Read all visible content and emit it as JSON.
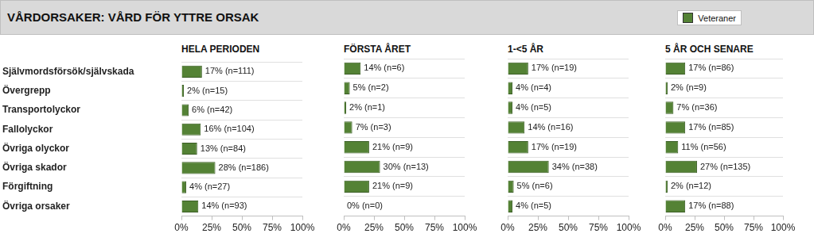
{
  "title": "VÅRDORSAKER: VÅRD FÖR YTTRE ORSAK",
  "chart_data": [
    {
      "type": "bar",
      "orientation": "horizontal",
      "title": "HELA PERIODEN",
      "legend": "top right",
      "categories": [
        "Självmordsförsök/självskada",
        "Övergrepp",
        "Transportolyckor",
        "Fallolyckor",
        "Övriga olyckor",
        "Övriga skador",
        "Förgiftning",
        "Övriga orsaker"
      ],
      "series": [
        {
          "name": "Veteraner",
          "color": "#548235",
          "values": [
            17,
            2,
            6,
            16,
            13,
            28,
            4,
            14
          ],
          "value_labels": [
            "17% (n=111)",
            "2% (n=15)",
            "6% (n=42)",
            "16% (n=104)",
            "13% (n=84)",
            "28% (n=186)",
            "4% (n=27)",
            "14% (n=93)"
          ]
        }
      ],
      "xlim": [
        0,
        100
      ],
      "xticks": [
        {
          "value": 0,
          "label": "0%"
        },
        {
          "value": 25,
          "label": "25%"
        },
        {
          "value": 50,
          "label": "50%"
        },
        {
          "value": 75,
          "label": "75%"
        },
        {
          "value": 100,
          "label": "100%"
        }
      ],
      "data_labels": true,
      "grid": true
    },
    {
      "type": "bar",
      "orientation": "horizontal",
      "title": "FÖRSTA ÅRET",
      "tick_labels": "x",
      "categories": [
        "Självmordsförsök/självskada",
        "Övergrepp",
        "Transportolyckor",
        "Fallolyckor",
        "Övriga olyckor",
        "Övriga skador",
        "Förgiftning",
        "Övriga orsaker"
      ],
      "series": [
        {
          "name": "Veteraner",
          "color": "#548235",
          "values": [
            14,
            5,
            2,
            7,
            21,
            30,
            21,
            0
          ],
          "value_labels": [
            "14% (n=6)",
            "5% (n=2)",
            "2% (n=1)",
            "7% (n=3)",
            "21% (n=9)",
            "30% (n=13)",
            "21% (n=9)",
            "0% (n=0)"
          ]
        }
      ],
      "xlim": [
        0,
        100
      ],
      "xticks": [
        {
          "value": 0,
          "label": "0%"
        },
        {
          "value": 25,
          "label": "25%"
        },
        {
          "value": 50,
          "label": "50%"
        },
        {
          "value": 75,
          "label": "75%"
        },
        {
          "value": 100,
          "label": "100%"
        }
      ],
      "data_labels": true,
      "grid": true
    },
    {
      "type": "bar",
      "orientation": "horizontal",
      "title": "1-<5 ÅR",
      "tick_labels": "x",
      "categories": [
        "Självmordsförsök/självskada",
        "Övergrepp",
        "Transportolyckor",
        "Fallolyckor",
        "Övriga olyckor",
        "Övriga skador",
        "Förgiftning",
        "Övriga orsaker"
      ],
      "series": [
        {
          "name": "Veteraner",
          "color": "#548235",
          "values": [
            17,
            4,
            4,
            14,
            17,
            34,
            5,
            4
          ],
          "value_labels": [
            "17% (n=19)",
            "4% (n=4)",
            "4% (n=5)",
            "14% (n=16)",
            "17% (n=19)",
            "34% (n=38)",
            "5% (n=6)",
            "4% (n=5)"
          ]
        }
      ],
      "xlim": [
        0,
        100
      ],
      "xticks": [
        {
          "value": 0,
          "label": "0%"
        },
        {
          "value": 25,
          "label": "25%"
        },
        {
          "value": 50,
          "label": "50%"
        },
        {
          "value": 75,
          "label": "75%"
        },
        {
          "value": 100,
          "label": "100%"
        }
      ],
      "data_labels": true,
      "grid": true
    },
    {
      "type": "bar",
      "orientation": "horizontal",
      "title": "5 ÅR OCH SENARE",
      "tick_labels": "x",
      "categories": [
        "Självmordsförsök/självskada",
        "Övergrepp",
        "Transportolyckor",
        "Fallolyckor",
        "Övriga olyckor",
        "Övriga skador",
        "Förgiftning",
        "Övriga orsaker"
      ],
      "series": [
        {
          "name": "Veteraner",
          "color": "#548235",
          "values": [
            17,
            2,
            7,
            17,
            11,
            27,
            2,
            17
          ],
          "value_labels": [
            "17% (n=86)",
            "2% (n=9)",
            "7% (n=36)",
            "17% (n=85)",
            "11% (n=56)",
            "27% (n=135)",
            "2% (n=12)",
            "17% (n=88)"
          ]
        }
      ],
      "xlim": [
        0,
        100
      ],
      "xticks": [
        {
          "value": 0,
          "label": "0%"
        },
        {
          "value": 25,
          "label": "25%"
        },
        {
          "value": 50,
          "label": "50%"
        },
        {
          "value": 75,
          "label": "75%"
        },
        {
          "value": 100,
          "label": "100%"
        }
      ],
      "data_labels": true,
      "grid": true
    }
  ]
}
